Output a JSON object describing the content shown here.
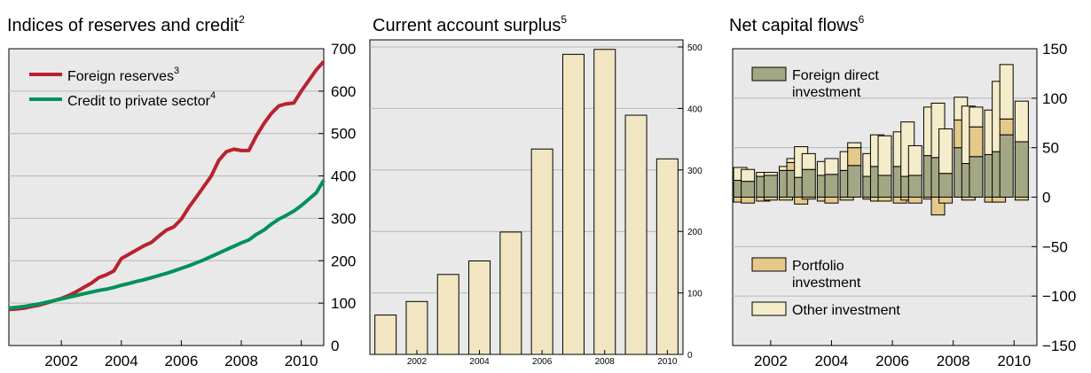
{
  "chart_data": [
    {
      "type": "line",
      "title": "Indices of reserves and credit",
      "title_sup": "2",
      "ylim": [
        0,
        700
      ],
      "y_ticks": [
        0,
        100,
        200,
        300,
        400,
        500,
        600,
        700
      ],
      "y_tick_labels": [
        "0",
        "100",
        "200",
        "300",
        "400",
        "500",
        "600",
        "700"
      ],
      "x_range": [
        2000.25,
        2010.75
      ],
      "x_ticks": [
        2002,
        2004,
        2006,
        2008,
        2010
      ],
      "x_tick_labels": [
        "2002",
        "2004",
        "2006",
        "2008",
        "2010"
      ],
      "grid": true,
      "legend_position": "top-left",
      "series": [
        {
          "name": "Foreign reserves",
          "legend_sup": "3",
          "color": "#b8232f",
          "x": [
            2000.25,
            2000.5,
            2000.75,
            2001.0,
            2001.25,
            2001.5,
            2001.75,
            2002.0,
            2002.25,
            2002.5,
            2002.75,
            2003.0,
            2003.25,
            2003.5,
            2003.75,
            2004.0,
            2004.25,
            2004.5,
            2004.75,
            2005.0,
            2005.25,
            2005.5,
            2005.75,
            2006.0,
            2006.25,
            2006.5,
            2006.75,
            2007.0,
            2007.25,
            2007.5,
            2007.75,
            2008.0,
            2008.25,
            2008.5,
            2008.75,
            2009.0,
            2009.25,
            2009.5,
            2009.75,
            2010.0,
            2010.25,
            2010.5,
            2010.75
          ],
          "values": [
            85,
            86,
            88,
            92,
            95,
            100,
            106,
            111,
            118,
            127,
            137,
            147,
            160,
            167,
            176,
            205,
            215,
            225,
            235,
            243,
            258,
            272,
            280,
            298,
            326,
            350,
            375,
            400,
            437,
            457,
            463,
            460,
            460,
            494,
            523,
            547,
            565,
            570,
            572,
            600,
            625,
            650,
            670
          ]
        },
        {
          "name": "Credit to private sector",
          "legend_sup": "4",
          "color": "#00915a",
          "x": [
            2000.25,
            2000.5,
            2000.75,
            2001.0,
            2001.25,
            2001.5,
            2001.75,
            2002.0,
            2002.25,
            2002.5,
            2002.75,
            2003.0,
            2003.25,
            2003.5,
            2003.75,
            2004.0,
            2004.25,
            2004.5,
            2004.75,
            2005.0,
            2005.25,
            2005.5,
            2005.75,
            2006.0,
            2006.25,
            2006.5,
            2006.75,
            2007.0,
            2007.25,
            2007.5,
            2007.75,
            2008.0,
            2008.25,
            2008.5,
            2008.75,
            2009.0,
            2009.25,
            2009.5,
            2009.75,
            2010.0,
            2010.25,
            2010.5,
            2010.75
          ],
          "values": [
            88,
            90,
            92,
            95,
            98,
            102,
            106,
            110,
            114,
            118,
            122,
            126,
            130,
            133,
            137,
            142,
            146,
            151,
            155,
            160,
            165,
            170,
            176,
            182,
            188,
            195,
            202,
            210,
            218,
            226,
            234,
            242,
            249,
            262,
            272,
            286,
            298,
            307,
            317,
            330,
            345,
            360,
            390
          ]
        }
      ]
    },
    {
      "type": "bar",
      "title": "Current account surplus",
      "title_sup": "5",
      "categories": [
        "2001",
        "2002",
        "2003",
        "2004",
        "2005",
        "2006",
        "2007",
        "2008",
        "2009",
        "2010"
      ],
      "values": [
        64,
        86,
        130,
        152,
        199,
        334,
        488,
        496,
        389,
        318
      ],
      "ylim": [
        0,
        500
      ],
      "y_ticks": [
        0,
        100,
        200,
        300,
        400,
        500
      ],
      "y_tick_labels": [
        "0",
        "100",
        "200",
        "300",
        "400",
        "500"
      ],
      "x_tick_labels": [
        "2002",
        "2004",
        "2006",
        "2008",
        "2010"
      ],
      "grid": true,
      "bar_color": "#f2e6c2"
    },
    {
      "type": "bar",
      "stacked": true,
      "title": "Net capital flows",
      "title_sup": "6",
      "x_range": [
        2000.75,
        2010.75
      ],
      "x": [
        2001.0,
        2001.25,
        2001.75,
        2002.0,
        2002.5,
        2002.75,
        2003.0,
        2003.25,
        2003.75,
        2004.0,
        2004.5,
        2004.75,
        2005.25,
        2005.5,
        2005.75,
        2006.25,
        2006.5,
        2006.75,
        2007.25,
        2007.5,
        2007.75,
        2008.25,
        2008.5,
        2008.75,
        2009.25,
        2009.5,
        2009.75,
        2010.25
      ],
      "ylim": [
        -150,
        150
      ],
      "y_ticks": [
        -150,
        -100,
        -50,
        0,
        50,
        100,
        150
      ],
      "y_tick_labels": [
        "−150",
        "−100",
        "−50",
        "0",
        "50",
        "100",
        "150"
      ],
      "x_ticks": [
        2002,
        2004,
        2006,
        2008,
        2010
      ],
      "x_tick_labels": [
        "2002",
        "2004",
        "2006",
        "2008",
        "2010"
      ],
      "grid": true,
      "legend_position": "top-left and bottom-left",
      "series": [
        {
          "name": "Foreign direct investment",
          "color": "#a3a784",
          "values": [
            17,
            16,
            21,
            22,
            27,
            27,
            20,
            28,
            22,
            23,
            27,
            32,
            21,
            31,
            22,
            31,
            21,
            22,
            42,
            40,
            24,
            50,
            34,
            41,
            43,
            46,
            63,
            56
          ]
        },
        {
          "name": "Portfolio investment",
          "color": "#e4c98a",
          "values": [
            -5,
            -6,
            -4,
            -3,
            -3,
            8,
            -7,
            -2,
            -4,
            -6,
            -3,
            18,
            -2,
            -4,
            -4,
            -6,
            -3,
            -6,
            -2,
            -18,
            -6,
            28,
            -3,
            30,
            -5,
            -5,
            16,
            -3
          ]
        },
        {
          "name": "Other investment",
          "color": "#f5ecca",
          "values": [
            13,
            12,
            4,
            3,
            4,
            4,
            31,
            16,
            14,
            16,
            19,
            5,
            23,
            32,
            40,
            35,
            55,
            30,
            49,
            55,
            45,
            23,
            58,
            20,
            45,
            71,
            55,
            41
          ]
        }
      ]
    }
  ]
}
